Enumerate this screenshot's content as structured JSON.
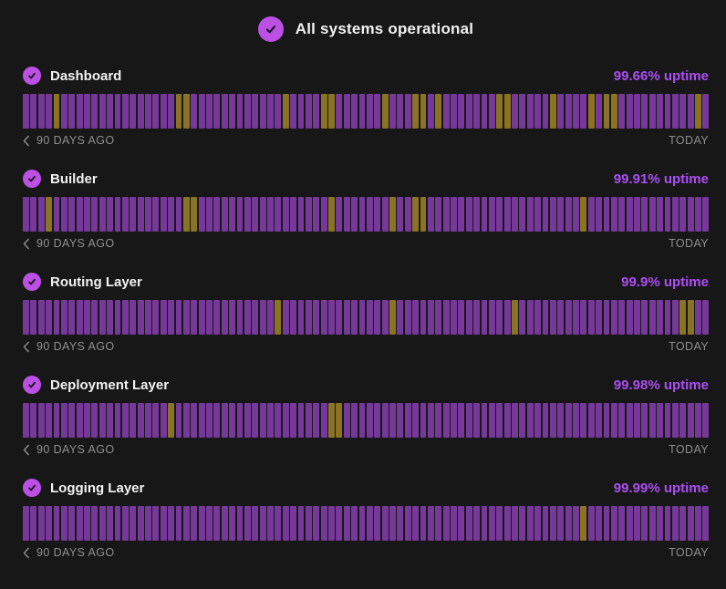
{
  "header": {
    "status_message": "All systems operational"
  },
  "timeline": {
    "days": 90,
    "start_label": "90 DAYS AGO",
    "end_label": "TODAY"
  },
  "colors": {
    "background": "#171717",
    "accent": "#bc50e4",
    "check_glyph": "#1d1222",
    "bar_operational": "#76399a",
    "bar_degraded": "#8a7424",
    "uptime_text": "#ab4ff2",
    "footer_text": "#8f8f8f"
  },
  "services": [
    {
      "name": "Dashboard",
      "uptime_label": "99.66% uptime",
      "degraded_days": [
        4,
        20,
        21,
        34,
        39,
        40,
        47,
        51,
        52,
        54,
        62,
        63,
        69,
        74,
        76,
        77,
        88
      ]
    },
    {
      "name": "Builder",
      "uptime_label": "99.91% uptime",
      "degraded_days": [
        3,
        21,
        22,
        40,
        48,
        51,
        52,
        73
      ]
    },
    {
      "name": "Routing Layer",
      "uptime_label": "99.9% uptime",
      "degraded_days": [
        33,
        48,
        64,
        86,
        87
      ]
    },
    {
      "name": "Deployment Layer",
      "uptime_label": "99.98% uptime",
      "degraded_days": [
        19,
        40,
        41
      ]
    },
    {
      "name": "Logging Layer",
      "uptime_label": "99.99% uptime",
      "degraded_days": [
        73
      ]
    }
  ]
}
